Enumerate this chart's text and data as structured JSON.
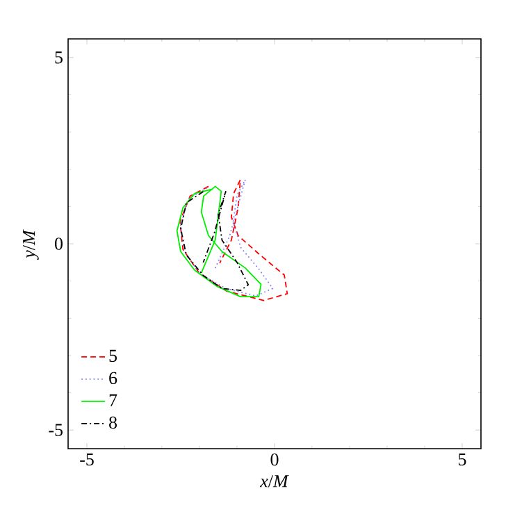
{
  "chart_data": {
    "type": "line",
    "xlabel": "*x*/*M*",
    "ylabel": "*y*/*M*",
    "xlim": [
      -5.5,
      5.5
    ],
    "ylim": [
      -5.5,
      5.5
    ],
    "xticks": [
      -5,
      0,
      5
    ],
    "yticks": [
      -5,
      0,
      5
    ],
    "legend": "bottom left",
    "grid": false,
    "series": [
      {
        "name": "5",
        "color": "#ff0000",
        "line_style": "dashed",
        "x": [
          -1.76,
          -2.25,
          -2.52,
          -2.44,
          -2.01,
          -1.28,
          -0.29,
          0.34,
          0.26,
          -0.42,
          -0.97,
          -1.15,
          -1.09,
          -0.91,
          -0.97,
          -1.15,
          -1.46
        ],
        "values": [
          1.54,
          1.28,
          0.6,
          -0.15,
          -0.78,
          -1.27,
          -1.52,
          -1.34,
          -0.84,
          -0.27,
          0.22,
          0.72,
          1.35,
          1.72,
          0.97,
          0.1,
          -0.52
        ]
      },
      {
        "name": "6",
        "color": "#8080ff",
        "line_style": "dotted",
        "x": [
          -1.8,
          -2.3,
          -2.5,
          -2.4,
          -2.0,
          -1.3,
          -0.5,
          -0.05,
          -0.4,
          -0.9,
          -1.1,
          -1.0,
          -0.78,
          -0.95,
          -1.2,
          -1.6
        ],
        "values": [
          1.5,
          1.2,
          0.5,
          -0.2,
          -0.8,
          -1.2,
          -1.4,
          -1.2,
          -0.7,
          -0.1,
          0.6,
          1.3,
          1.72,
          1.1,
          0.2,
          -0.7
        ]
      },
      {
        "name": "7",
        "color": "#00ee00",
        "line_style": "solid",
        "x": [
          -1.64,
          -2.13,
          -2.44,
          -2.6,
          -2.5,
          -2.13,
          -1.52,
          -0.91,
          -0.42,
          -0.36,
          -0.78,
          -1.4,
          -1.76,
          -1.95,
          -1.89,
          -1.58,
          -1.42,
          -1.58,
          -1.95
        ],
        "values": [
          1.47,
          1.35,
          0.97,
          0.35,
          -0.21,
          -0.71,
          -1.15,
          -1.42,
          -1.42,
          -1.09,
          -0.65,
          -0.21,
          0.22,
          0.85,
          1.28,
          1.54,
          1.41,
          0.1,
          -0.78
        ]
      },
      {
        "name": "8",
        "color": "#000000",
        "line_style": "dashdot",
        "x": [
          -1.9,
          -2.35,
          -2.5,
          -2.35,
          -1.9,
          -1.4,
          -0.9,
          -0.7,
          -1.0,
          -1.4,
          -1.5,
          -1.3,
          -1.6,
          -1.9
        ],
        "values": [
          1.4,
          1.1,
          0.4,
          -0.3,
          -0.85,
          -1.2,
          -1.25,
          -1.1,
          -0.5,
          0.1,
          0.8,
          1.4,
          0.3,
          -0.5
        ]
      }
    ]
  }
}
